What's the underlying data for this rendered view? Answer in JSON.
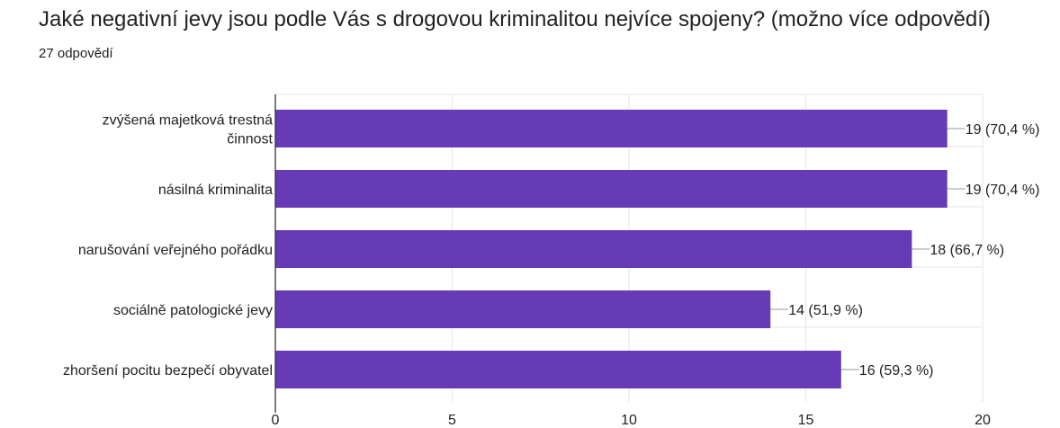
{
  "header": {
    "title": "Jaké negativní jevy jsou podle Vás s drogovou kriminalitou nejvíce spojeny? (možno více odpovědí)",
    "responses": "27 odpovědí"
  },
  "chart_data": {
    "type": "bar",
    "orientation": "horizontal",
    "categories": [
      [
        "zvýšená majetková trestná",
        "činnost"
      ],
      [
        "násilná kriminalita"
      ],
      [
        "narušování veřejného pořádku"
      ],
      [
        "sociálně patologické jevy"
      ],
      [
        "zhoršení pocitu bezpečí obyvatel"
      ]
    ],
    "values": [
      19,
      19,
      18,
      14,
      16
    ],
    "data_labels": [
      "19 (70,4 %)",
      "19 (70,4 %)",
      "18 (66,7 %)",
      "14 (51,9 %)",
      "16 (59,3 %)"
    ],
    "xlim": [
      0,
      20
    ],
    "xticks": [
      0,
      5,
      10,
      15,
      20
    ],
    "xtick_labels": [
      "0",
      "5",
      "10",
      "15",
      "20"
    ],
    "grid": true,
    "bar_color": "#673ab7",
    "grid_color": "#e6e6e6",
    "axis_color": "#333333",
    "leader_color": "#999999"
  }
}
